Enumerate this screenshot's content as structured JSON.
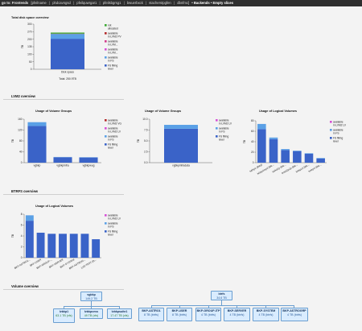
{
  "nav": {
    "lead": "go to: Frontends",
    "links": [
      "[pfeilname",
      "phdcavngsd",
      "pfeilquwrgar1",
      "pfeilsbgrsg1",
      "bwuerbxck",
      "stacherstpgfen",
      "dbnfmc]"
    ],
    "crumb": "• Backends • Empty slices"
  },
  "sections": {
    "lvm2": "LVM2 overview",
    "btrfs": "BTRFS overview",
    "volume": "Volume overview"
  },
  "legend": {
    "top": [
      "not allocated",
      "available in LVM2 PV",
      "available in LVM...",
      "available in LVM...",
      "available in FS",
      "FS filling level"
    ],
    "vg": [
      "available in LVM2 VG",
      "available in LVM2 LV",
      "available in FS",
      "FS filling level"
    ],
    "lv": [
      "available in LVM2 LV",
      "available in FS",
      "FS filling level"
    ],
    "btrfs": [
      "available in LVM2 LV",
      "available in FS",
      "FS filling level"
    ]
  },
  "colors": {
    "not_allocated": "#3aa832",
    "avail_pv": "#b32828",
    "avail_lvm": "#d23c8c",
    "avail_lvm2": "#d64fd6",
    "avail_fs": "#5aa0e6",
    "fs_filling": "#3a63c8"
  },
  "chart_data": [
    {
      "type": "bar",
      "title": "Total disk space overview",
      "ylabel": "TB",
      "categories": [
        "Disk space"
      ],
      "footer": "Total: 250.9TB",
      "ylim": [
        0,
        300
      ],
      "yticks": [
        "300",
        "270",
        "200",
        "135",
        "100",
        "50",
        "0"
      ],
      "series": [
        {
          "name": "FS filling level",
          "values": [
            203
          ]
        },
        {
          "name": "available in FS",
          "values": [
            32
          ]
        },
        {
          "name": "available in LVM2 PV",
          "values": [
            2
          ]
        },
        {
          "name": "not allocated",
          "values": [
            7
          ]
        }
      ]
    },
    {
      "type": "bar",
      "title": "Usage of Volume Groups",
      "ylabel": "TB",
      "categories": [
        "vgbkp",
        "vgbkpinfra",
        "vgbkpwug"
      ],
      "ylim": [
        0,
        160
      ],
      "yticks": [
        "160",
        "120",
        "80",
        "40",
        "0"
      ],
      "series": [
        {
          "name": "FS filling level",
          "values": [
            135,
            20,
            19
          ]
        },
        {
          "name": "available in FS",
          "values": [
            14,
            1,
            1
          ]
        }
      ]
    },
    {
      "type": "bar",
      "title": "Usage of Volume Groups",
      "ylabel": "TB",
      "categories": [
        "vgbkpinfradata"
      ],
      "ylim": [
        0,
        10
      ],
      "yticks": [
        "10.0",
        "7.5",
        "5.0",
        "2.5",
        "0.0"
      ],
      "series": [
        {
          "name": "FS filling level",
          "values": [
            7.8
          ]
        },
        {
          "name": "available in FS",
          "values": [
            0.9
          ]
        }
      ]
    },
    {
      "type": "bar",
      "title": "Usage of Logical Volumes",
      "ylabel": "TB",
      "categories": [
        "lvbkp1 (tbkp)",
        "lvbkp2rep3 (tbk...",
        "lvskd2p (tbk...",
        "lvskd2p2p (tbk...",
        "lvbkpc3 (tbk...",
        "lvskpcl (tbk..."
      ],
      "ylim": [
        0,
        80
      ],
      "yticks": [
        "80",
        "60",
        "40",
        "20",
        "0"
      ],
      "series": [
        {
          "name": "FS filling level",
          "values": [
            64,
            45,
            24,
            22,
            17,
            8
          ]
        },
        {
          "name": "available in FS",
          "values": [
            10,
            3,
            2,
            1,
            1,
            1
          ]
        }
      ]
    },
    {
      "type": "bar",
      "title": "Usage of Logical Volumes",
      "ylabel": "TB",
      "categories": [
        "BKP-ASTRO1...",
        "BKP-USER",
        "BKP-GROUP-...",
        "BKP-SERVER",
        "BKP-SYSTEM",
        "BKP-ASTROG...",
        "LVD-TEST (fs..."
      ],
      "ylim": [
        0,
        8
      ],
      "yticks": [
        "8",
        "6",
        "4",
        "2",
        "0"
      ],
      "series": [
        {
          "name": "FS filling level",
          "values": [
            6.8,
            4.6,
            4.4,
            4.4,
            4.4,
            4.4,
            3.4
          ]
        },
        {
          "name": "available in FS",
          "values": [
            1,
            0,
            0,
            0,
            0,
            0,
            0
          ]
        }
      ]
    }
  ],
  "volume": {
    "left_root": {
      "name": "vgbkp",
      "size": "149.2 TB"
    },
    "left_children": [
      {
        "name": "lvbkp1",
        "size": "63.1 TB (xfs)"
      },
      {
        "name": "lvbkpcess",
        "size": "49 TB (xfs)"
      },
      {
        "name": "lvbkpsuite1",
        "size": "17.47 TB (xfs)"
      }
    ],
    "right_root": {
      "name": "btrfs",
      "size": "34.6 TB"
    },
    "right_children": [
      {
        "name": "BKP-ASTRO1",
        "size": "8 TB (btrfs)"
      },
      {
        "name": "BKP-USER",
        "size": "8 TB (btrfs)"
      },
      {
        "name": "BKP-GROUP-ITP",
        "size": "4 TB (btrfs)"
      },
      {
        "name": "BKP-SERVER",
        "size": "4 TB (btrfs)"
      },
      {
        "name": "BKP-SYSTEM",
        "size": "4 TB (btrfs)"
      },
      {
        "name": "BKP-ASTROGRP",
        "size": "4 TB (btrfs)"
      }
    ]
  }
}
